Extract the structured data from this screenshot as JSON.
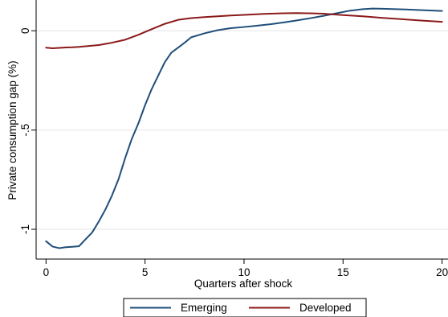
{
  "chart_data": {
    "type": "line",
    "title": "",
    "xlabel": "Quarters after shock",
    "ylabel": "Private consumption gap (%)",
    "xlim": [
      -0.5,
      20.3
    ],
    "ylim": [
      -1.15,
      0.155
    ],
    "xticks": [
      0,
      5,
      10,
      15,
      20
    ],
    "xtick_labels": [
      "0",
      "5",
      "10",
      "15",
      "20"
    ],
    "yticks": [
      0,
      -0.5,
      -1
    ],
    "ytick_labels": [
      "0",
      "-.5",
      "-1"
    ],
    "grid": "horizontal",
    "legend_position": "bottom",
    "series": [
      {
        "name": "Emerging",
        "color": "#1f4e79",
        "x": [
          0,
          0.33,
          0.67,
          1,
          1.33,
          1.67,
          2,
          2.33,
          2.67,
          3,
          3.33,
          3.67,
          4,
          4.33,
          4.67,
          5,
          5.33,
          5.67,
          6,
          6.33,
          6.67,
          7,
          7.33,
          8,
          8.67,
          9.33,
          10,
          10.67,
          11.33,
          12,
          12.67,
          13.33,
          14,
          14.67,
          15.33,
          16,
          16.5,
          17,
          18,
          19,
          20
        ],
        "y": [
          -1.06,
          -1.087,
          -1.095,
          -1.09,
          -1.088,
          -1.085,
          -1.05,
          -1.016,
          -0.96,
          -0.9,
          -0.83,
          -0.745,
          -0.64,
          -0.545,
          -0.465,
          -0.375,
          -0.295,
          -0.225,
          -0.158,
          -0.11,
          -0.085,
          -0.06,
          -0.033,
          -0.013,
          0.003,
          0.013,
          0.019,
          0.026,
          0.033,
          0.042,
          0.052,
          0.063,
          0.075,
          0.088,
          0.101,
          0.109,
          0.112,
          0.111,
          0.108,
          0.104,
          0.1
        ]
      },
      {
        "name": "Developed",
        "color": "#8b1a1a",
        "x": [
          0,
          0.33,
          0.67,
          1,
          1.33,
          1.67,
          2,
          2.67,
          3.33,
          4,
          4.67,
          5.33,
          6,
          6.67,
          7.33,
          8,
          8.67,
          9.33,
          10,
          11,
          12,
          12.67,
          13.33,
          14,
          15,
          16,
          17,
          18,
          19,
          20
        ],
        "y": [
          -0.085,
          -0.088,
          -0.086,
          -0.084,
          -0.083,
          -0.081,
          -0.078,
          -0.072,
          -0.06,
          -0.045,
          -0.02,
          0.008,
          0.035,
          0.055,
          0.064,
          0.069,
          0.073,
          0.077,
          0.08,
          0.085,
          0.088,
          0.089,
          0.088,
          0.086,
          0.079,
          0.073,
          0.065,
          0.058,
          0.051,
          0.045
        ]
      }
    ]
  }
}
